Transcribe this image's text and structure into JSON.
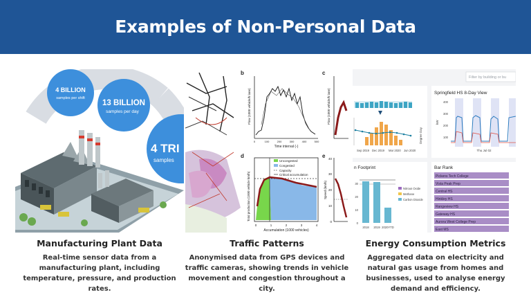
{
  "header": {
    "title": "Examples of Non-Personal Data"
  },
  "cards": [
    {
      "title": "Manufacturing Plant Data",
      "description": "Real-time sensor data from a manufacturing plant, including temperature, pressure, and production rates.",
      "image": {
        "bubble_1": {
          "value": "4 BILLION",
          "label": "samples per shift"
        },
        "bubble_2": {
          "value": "13 BILLION",
          "label": "samples per day"
        },
        "bubble_3": {
          "value": "4 TRI",
          "label": "samples"
        }
      }
    },
    {
      "title": "Traffic Patterns",
      "description": "Anonymised data from GPS devices and traffic cameras, showing trends in vehicle movement and congestion throughout a city.",
      "image": {
        "panel_b": "b",
        "panel_c": "c",
        "panel_d": "d",
        "panel_e": "e",
        "b_ylabel": "Flow (1000 vehicle/h lane)",
        "b_xlabel": "Time interval (-)",
        "b_xticks": [
          "0",
          "100",
          "200",
          "300",
          "400",
          "500"
        ],
        "c_ylabel": "Flow (1000 vehicle/h lane)",
        "d_ylabel": "Total production (1000 vehicle km/h)",
        "d_xlabel": "Accumulation (1000 vehicles)",
        "d_xticks": [
          "0",
          "1",
          "2",
          "3",
          "4"
        ],
        "d_legend": [
          "Uncongested",
          "Congested",
          "Capacity",
          "Critical accumulation"
        ],
        "e_ylabel": "Speed (km/h)",
        "e_yticks": [
          "0",
          "10",
          "20",
          "30",
          "40"
        ]
      }
    },
    {
      "title": "Energy Consumption Metrics",
      "description": "Aggregated data on electricity and natural gas usage from homes and businesses, used to analyse energy demand and efficiency.",
      "image": {
        "filter_placeholder": "Filter by building or bu",
        "chart1_xticks": [
          "Sep 2019",
          "Dec 2019",
          "Mar 2020",
          "Jun 2020"
        ],
        "chart1_ylabel_right": "Degree Day",
        "chart2_title": "Springfield HS 8-Day View",
        "chart2_ylabel": "kW",
        "chart2_yticks": [
          "100",
          "200",
          "300",
          "400"
        ],
        "chart2_xtick": "Thu Jul 02",
        "footprint_title": "n Footprint",
        "footprint_yticks": [
          "0",
          "10",
          "20",
          "30"
        ],
        "footprint_xticks": [
          "2018",
          "2019",
          "2020YTD"
        ],
        "footprint_legend": [
          "Nitrous Oxide",
          "Methane",
          "Carbon Dioxide"
        ],
        "bar_rank_title": "Bar Rank",
        "bar_rank_items": [
          "Pickens Tech College",
          "Vista Peak Prep",
          "Central HS",
          "Hinkley HS",
          "Rangeview HS",
          "Gateway HS",
          "Aurora West College Prep",
          "East MS"
        ]
      }
    }
  ]
}
